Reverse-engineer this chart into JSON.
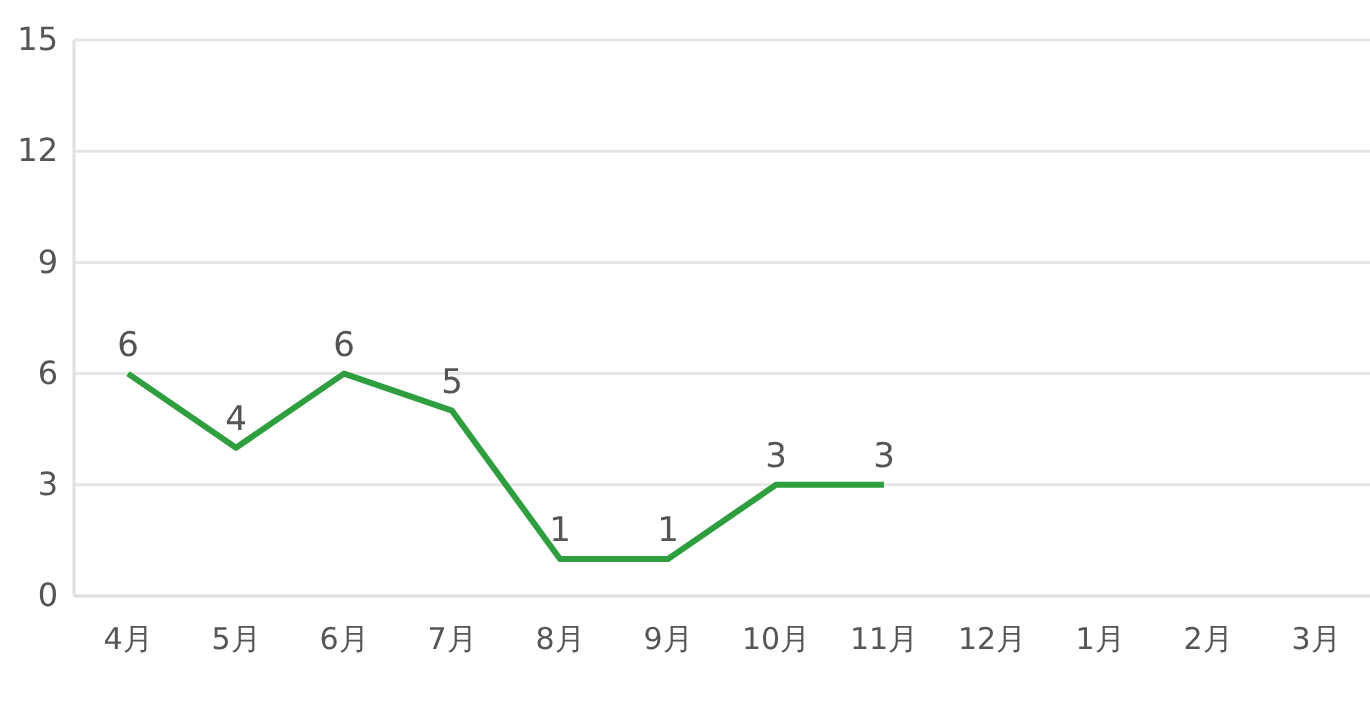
{
  "chart_data": {
    "type": "line",
    "categories": [
      "4月",
      "5月",
      "6月",
      "7月",
      "8月",
      "9月",
      "10月",
      "11月",
      "12月",
      "1月",
      "2月",
      "3月"
    ],
    "series": [
      {
        "color": "#2e9e3e",
        "values": [
          6,
          4,
          6,
          5,
          1,
          1,
          3,
          3,
          null,
          null,
          null,
          null
        ]
      }
    ],
    "ylim": [
      0,
      15
    ],
    "yticks": [
      0,
      3,
      6,
      9,
      12,
      15
    ],
    "grid": "y",
    "data_labels": true,
    "marker": "none",
    "line_style": "solid"
  }
}
